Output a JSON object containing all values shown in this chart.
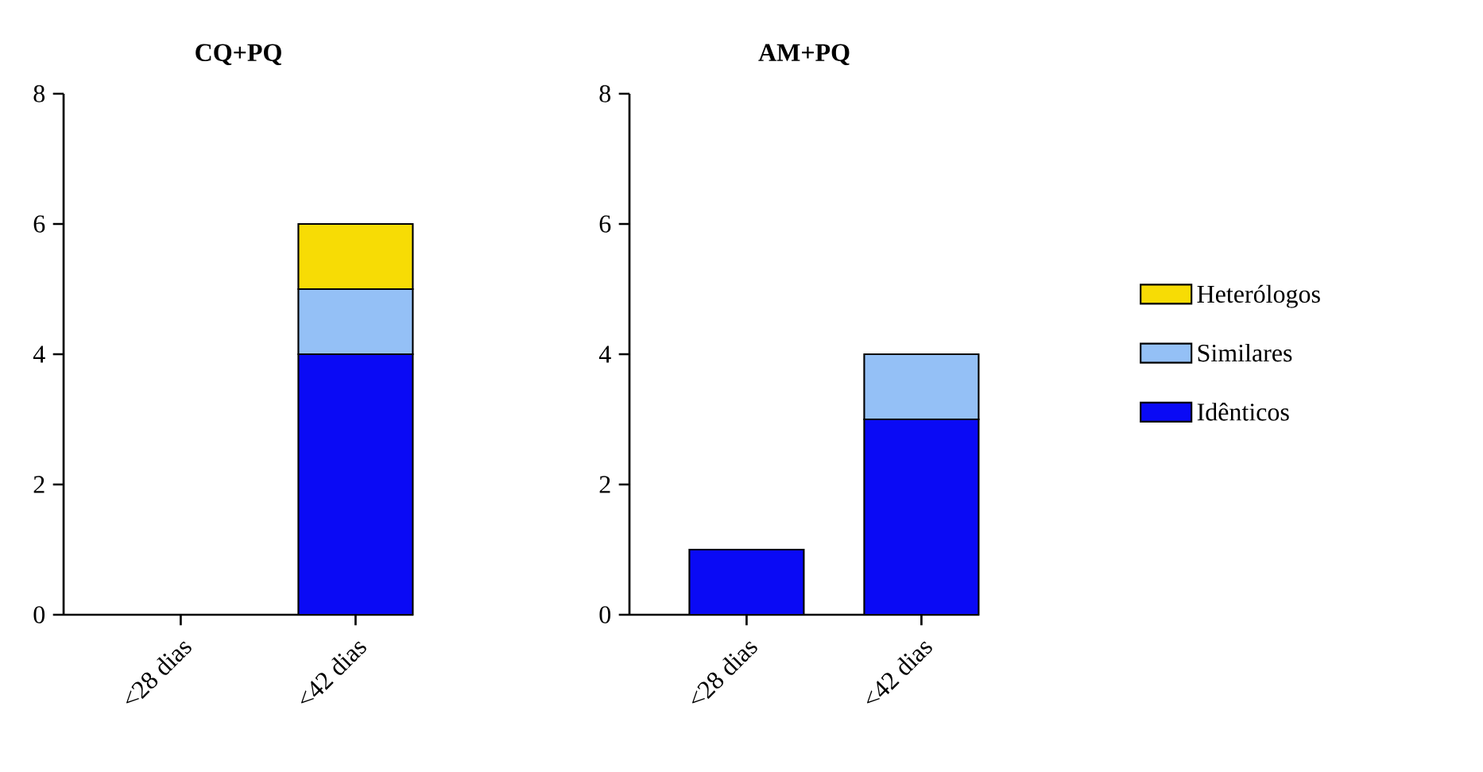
{
  "chart_data": [
    {
      "type": "bar",
      "title": "CQ+PQ",
      "stacked": true,
      "categories": [
        "<28 dias",
        "<42 dias"
      ],
      "ylim": [
        0,
        8
      ],
      "yticks": [
        0,
        2,
        4,
        6,
        8
      ],
      "legend": false,
      "series": [
        {
          "color": "#0a0af5",
          "values": [
            0,
            4
          ]
        },
        {
          "color": "#94c0f6",
          "values": [
            0,
            1
          ]
        },
        {
          "color": "#f7dc05",
          "values": [
            0,
            1
          ]
        }
      ]
    },
    {
      "type": "bar",
      "title": "AM+PQ",
      "stacked": true,
      "categories": [
        "<28 dias",
        "<42 dias"
      ],
      "ylim": [
        0,
        8
      ],
      "yticks": [
        0,
        2,
        4,
        6,
        8
      ],
      "legend": "right",
      "series": [
        {
          "name": "Idênticos",
          "color": "#0a0af5",
          "values": [
            1,
            3
          ]
        },
        {
          "name": "Similares",
          "color": "#94c0f6",
          "values": [
            0,
            1
          ]
        },
        {
          "name": "Heterólogos",
          "color": "#f7dc05",
          "values": [
            0,
            0
          ]
        }
      ]
    }
  ]
}
